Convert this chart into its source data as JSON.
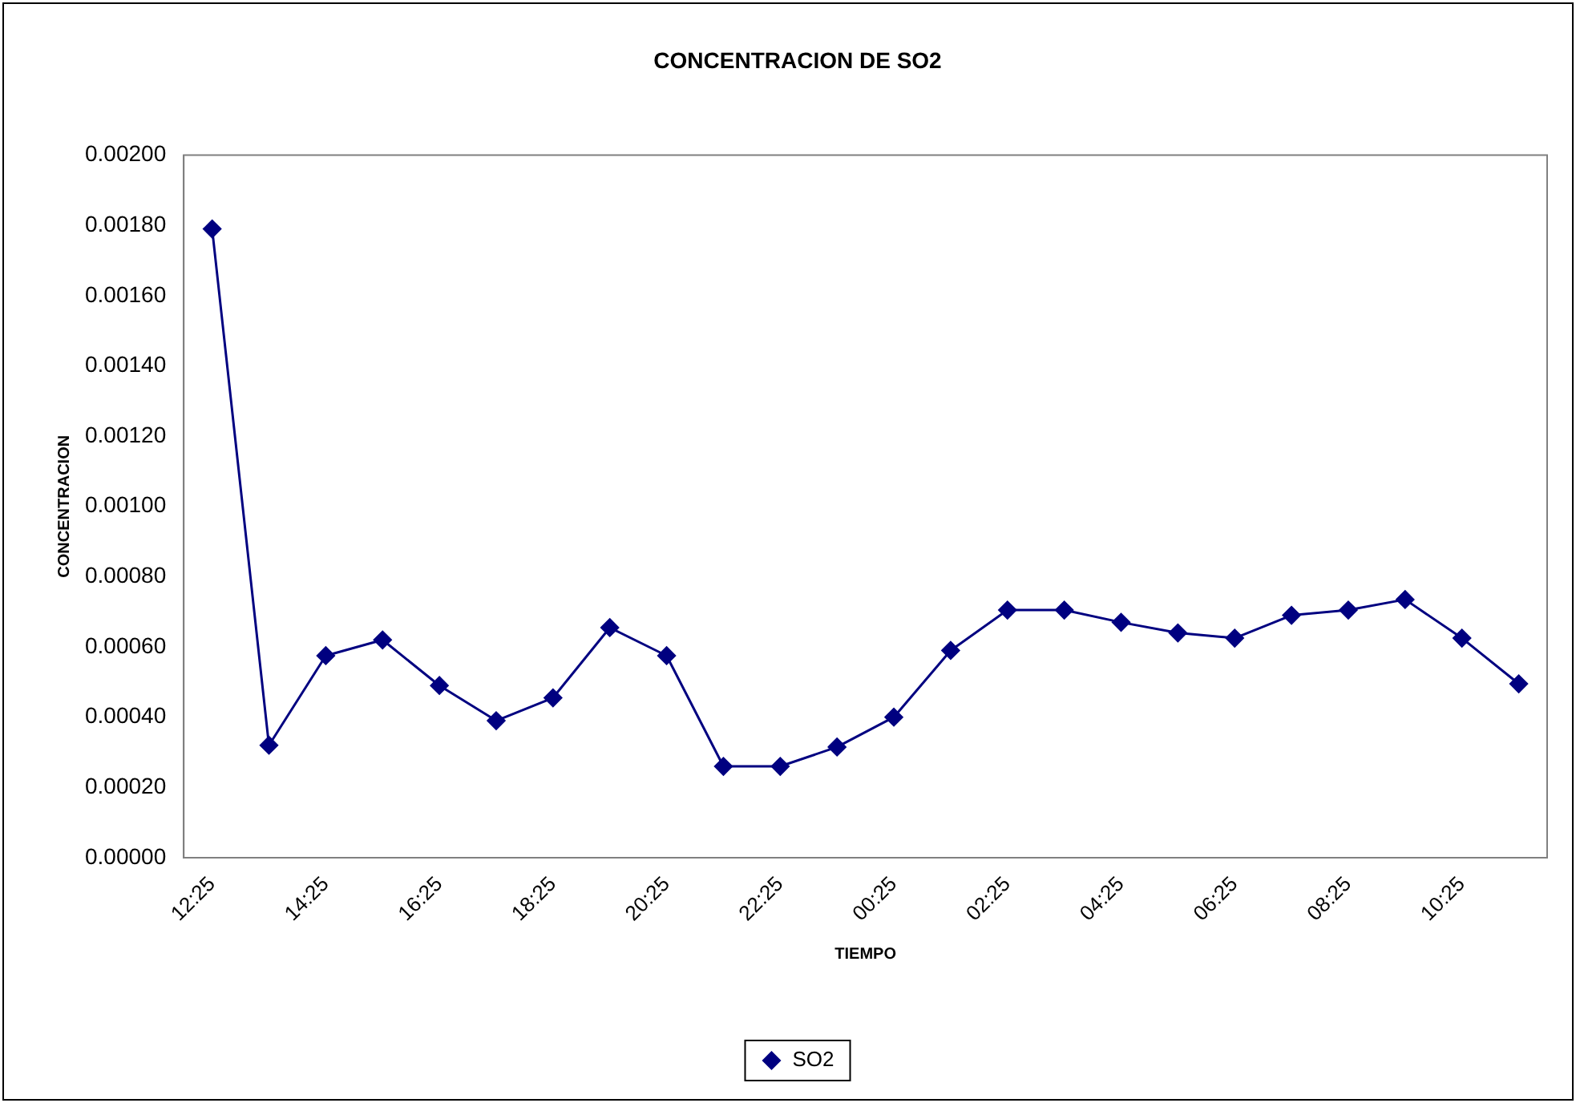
{
  "chart_data": {
    "type": "line",
    "title": "CONCENTRACION DE SO2",
    "xlabel": "TIEMPO",
    "ylabel": "CONCENTRACION",
    "categories": [
      "12:25",
      null,
      "14:25",
      null,
      "16:25",
      null,
      "18:25",
      null,
      "20:25",
      null,
      "22:25",
      null,
      "00:25",
      null,
      "02:25",
      null,
      "04:25",
      null,
      "06:25",
      null,
      "08:25",
      null,
      "10:25",
      null
    ],
    "series": [
      {
        "name": "SO2",
        "color": "#000080",
        "values": [
          0.00179,
          0.00032,
          0.000575,
          0.00062,
          0.00049,
          0.00039,
          0.000455,
          0.000655,
          0.000575,
          0.00026,
          0.00026,
          0.000315,
          0.0004,
          0.00059,
          0.000705,
          0.000705,
          0.00067,
          0.00064,
          0.000625,
          0.00069,
          0.000705,
          0.000735,
          0.000625,
          0.000495
        ]
      }
    ],
    "ylim": [
      0,
      0.002
    ],
    "yticks": [
      {
        "value": 0,
        "label": "0.00000"
      },
      {
        "value": 0.0002,
        "label": "0.00020"
      },
      {
        "value": 0.0004,
        "label": "0.00040"
      },
      {
        "value": 0.0006,
        "label": "0.00060"
      },
      {
        "value": 0.0008,
        "label": "0.00080"
      },
      {
        "value": 0.001,
        "label": "0.00100"
      },
      {
        "value": 0.0012,
        "label": "0.00120"
      },
      {
        "value": 0.0014,
        "label": "0.00140"
      },
      {
        "value": 0.0016,
        "label": "0.00160"
      },
      {
        "value": 0.0018,
        "label": "0.00180"
      },
      {
        "value": 0.002,
        "label": "0.00200"
      }
    ],
    "grid": false,
    "legend": "bottom",
    "marker": "diamond",
    "line_style": "solid"
  }
}
